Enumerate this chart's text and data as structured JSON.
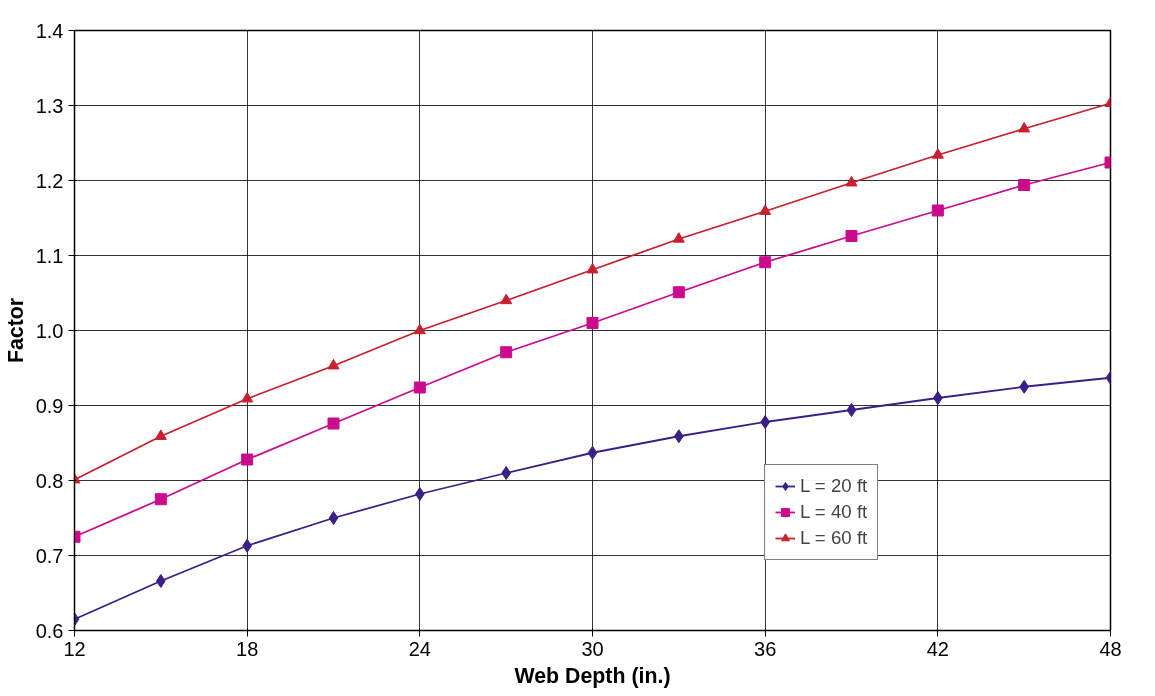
{
  "chart_data": {
    "type": "line",
    "xlabel": "Web Depth (in.)",
    "ylabel": "Factor",
    "x": [
      12,
      15,
      18,
      21,
      24,
      27,
      30,
      33,
      36,
      39,
      42,
      45,
      48
    ],
    "series": [
      {
        "name": "L = 20 ft",
        "color": "#3b1e86",
        "marker": "diamond",
        "values": [
          0.615,
          0.666,
          0.713,
          0.75,
          0.782,
          0.81,
          0.837,
          0.859,
          0.878,
          0.894,
          0.91,
          0.925,
          0.937
        ]
      },
      {
        "name": "L = 40 ft",
        "color": "#cc0a8c",
        "marker": "square",
        "values": [
          0.725,
          0.775,
          0.828,
          0.876,
          0.924,
          0.971,
          1.01,
          1.051,
          1.091,
          1.126,
          1.16,
          1.194,
          1.224
        ]
      },
      {
        "name": "L = 60 ft",
        "color": "#c8202e",
        "marker": "triangle",
        "values": [
          0.801,
          0.859,
          0.909,
          0.953,
          1.0,
          1.04,
          1.081,
          1.122,
          1.159,
          1.197,
          1.234,
          1.269,
          1.303
        ]
      }
    ],
    "xlim": [
      12,
      48
    ],
    "xticks": [
      12,
      18,
      24,
      30,
      36,
      42,
      48
    ],
    "ylim": [
      0.6,
      1.4
    ],
    "yticks": [
      0.6,
      0.7,
      0.8,
      0.9,
      {
        "value": 1,
        "label": "1.0"
      },
      1.1,
      1.2,
      1.3,
      1.4
    ],
    "grid": true,
    "legend": "right",
    "line_style": "solid"
  }
}
